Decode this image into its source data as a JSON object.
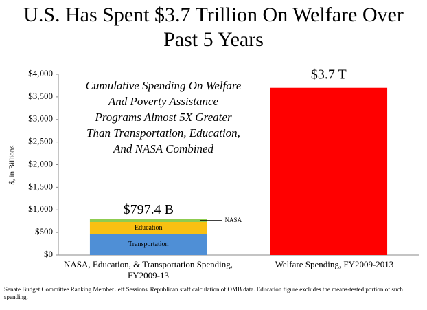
{
  "chart_data": {
    "type": "stacked_bar",
    "title": "U.S. Has Spent $3.7 Trillion On Welfare Over Past 5 Years",
    "y_label": "$, in Billions",
    "annotation": [
      "Cumulative Spending On Welfare",
      "And Poverty Assistance",
      "Programs Almost 5X Greater",
      "Than Transportation, Education,",
      "And NASA Combined"
    ],
    "categories": [
      "NASA, Education, & Transportation Spending, FY2009-13",
      "Welfare Spending, FY2009-2013"
    ],
    "series": [
      {
        "name": "Transportation",
        "color": "#4f8fd6",
        "values": [
          470,
          null
        ]
      },
      {
        "name": "Education",
        "color": "#f9c012",
        "values": [
          260,
          null
        ]
      },
      {
        "name": "NASA",
        "color": "#8fcc50",
        "values": [
          67.4,
          null
        ],
        "callout": true
      },
      {
        "color": "#ff0000",
        "values": [
          null,
          3700
        ],
        "value_labels": [
          null,
          "$3.7 T"
        ]
      }
    ],
    "total": 797.4,
    "total_label": "$797.4 B",
    "ylim": [
      0,
      4000
    ],
    "yticks": [
      {
        "value": 0,
        "label": "$0"
      },
      {
        "value": 500,
        "label": "$500"
      },
      {
        "value": 1000,
        "label": "$1,000"
      },
      {
        "value": 1500,
        "label": "$1,500"
      },
      {
        "value": 2000,
        "label": "$2,000"
      },
      {
        "value": 2500,
        "label": "$2,500"
      },
      {
        "value": 3000,
        "label": "$3,000"
      },
      {
        "value": 3500,
        "label": "$3,500"
      },
      {
        "value": 4000,
        "label": "$4,000"
      }
    ],
    "grid": false,
    "footnote": "Senate Budget Committee Ranking Member Jeff Sessions' Republican staff calculation of OMB data. Education figure excludes the means-tested portion of such spending."
  }
}
